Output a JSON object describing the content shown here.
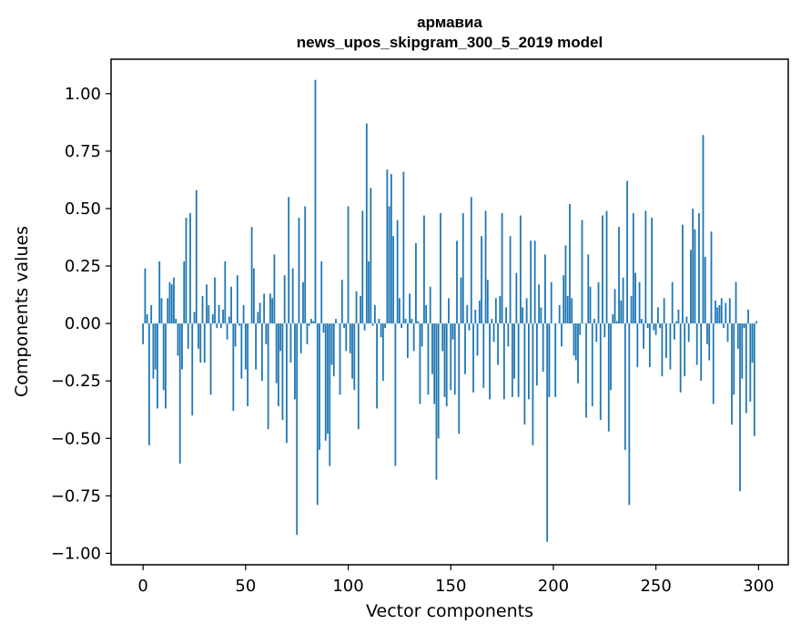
{
  "chart_data": {
    "type": "bar",
    "title_line1": "армавиа",
    "title_line2": "news_upos_skipgram_300_5_2019 model",
    "xlabel": "Vector components",
    "ylabel": "Components values",
    "xlim": [
      -15.6,
      314.5
    ],
    "ylim": [
      -1.05,
      1.15
    ],
    "grid": false,
    "bar_color": "#1f77b4",
    "x_ticks": [
      0,
      50,
      100,
      150,
      200,
      250,
      300
    ],
    "y_ticks": [
      -1.0,
      -0.75,
      -0.5,
      -0.25,
      0.0,
      0.25,
      0.5,
      0.75,
      1.0
    ],
    "x_tick_labels": [
      "0",
      "50",
      "100",
      "150",
      "200",
      "250",
      "300"
    ],
    "y_tick_labels": [
      "−1.00",
      "−0.75",
      "−0.50",
      "−0.25",
      "0.00",
      "0.25",
      "0.50",
      "0.75",
      "1.00"
    ],
    "values": [
      -0.09,
      0.24,
      0.04,
      -0.53,
      0.08,
      -0.24,
      -0.2,
      -0.37,
      0.27,
      0.11,
      -0.29,
      -0.37,
      0.11,
      0.18,
      0.17,
      0.2,
      0.02,
      -0.14,
      -0.61,
      -0.2,
      0.27,
      0.46,
      -0.11,
      0.48,
      -0.4,
      0.05,
      0.58,
      -0.11,
      -0.17,
      0.12,
      -0.17,
      0.17,
      0.08,
      -0.31,
      0.04,
      0.2,
      -0.02,
      0.08,
      -0.02,
      0.06,
      0.27,
      -0.07,
      0.03,
      0.16,
      -0.38,
      -0.1,
      0.21,
      -0.01,
      -0.24,
      0.08,
      -0.2,
      -0.36,
      0.0,
      0.42,
      0.24,
      -0.2,
      0.05,
      0.09,
      -0.25,
      0.13,
      -0.09,
      -0.46,
      0.13,
      0.11,
      0.3,
      -0.26,
      -0.36,
      -0.12,
      -0.42,
      0.21,
      -0.52,
      0.55,
      -0.17,
      0.24,
      -0.33,
      -0.92,
      0.46,
      -0.13,
      0.18,
      0.51,
      -0.09,
      -0.01,
      0.02,
      0.01,
      1.06,
      -0.79,
      -0.55,
      0.27,
      -0.04,
      -0.51,
      -0.48,
      -0.62,
      -0.18,
      -0.23,
      0.02,
      0.0,
      -0.31,
      0.19,
      -0.02,
      -0.12,
      0.51,
      -0.13,
      -0.24,
      -0.29,
      0.14,
      -0.46,
      0.12,
      0.49,
      -0.03,
      0.87,
      0.27,
      0.59,
      -0.01,
      0.08,
      -0.37,
      0.02,
      -0.06,
      -0.25,
      -0.02,
      0.67,
      0.51,
      0.65,
      0.38,
      -0.62,
      0.45,
      0.11,
      -0.02,
      0.66,
      0.02,
      -0.15,
      0.13,
      0.02,
      -0.12,
      0.35,
      0.01,
      -0.35,
      -0.1,
      0.47,
      0.08,
      -0.31,
      0.16,
      -0.22,
      -0.35,
      -0.68,
      -0.5,
      0.48,
      -0.12,
      -0.32,
      -0.36,
      0.11,
      -0.29,
      -0.07,
      -0.31,
      0.36,
      -0.48,
      0.2,
      0.48,
      -0.22,
      0.08,
      -0.03,
      0.55,
      -0.3,
      0.06,
      -0.14,
      0.1,
      0.38,
      -0.28,
      0.49,
      0.19,
      -0.33,
      0.02,
      -0.08,
      0.11,
      -0.18,
      0.12,
      0.48,
      -0.33,
      0.07,
      -0.1,
      0.38,
      -0.32,
      -0.24,
      0.22,
      -0.32,
      0.47,
      0.07,
      -0.44,
      0.11,
      -0.33,
      0.36,
      -0.53,
      0.36,
      -0.27,
      0.17,
      0.07,
      -0.21,
      0.3,
      -0.95,
      -0.32,
      0.18,
      0.0,
      -0.32,
      0.0,
      0.08,
      -0.1,
      0.21,
      0.34,
      0.12,
      0.52,
      0.11,
      -0.14,
      -0.16,
      -0.26,
      -0.05,
      0.45,
      0.0,
      -0.41,
      0.3,
      0.16,
      -0.36,
      0.02,
      -0.08,
      0.18,
      -0.42,
      0.47,
      -0.06,
      0.49,
      -0.47,
      -0.29,
      0.04,
      0.15,
      0.01,
      0.42,
      0.1,
      0.2,
      -0.55,
      0.62,
      -0.79,
      0.12,
      0.48,
      0.22,
      -0.19,
      0.18,
      0.02,
      -0.11,
      0.49,
      -0.02,
      -0.19,
      0.46,
      -0.03,
      -0.05,
      0.07,
      -0.02,
      -0.23,
      0.11,
      -0.15,
      0.0,
      -0.2,
      0.18,
      -0.07,
      0.01,
      0.06,
      -0.3,
      0.43,
      -0.23,
      0.03,
      -0.08,
      0.32,
      0.5,
      0.41,
      -0.18,
      0.48,
      -0.25,
      0.82,
      0.29,
      -0.09,
      -0.16,
      0.4,
      -0.35,
      0.1,
      0.07,
      0.08,
      0.11,
      -0.02,
      0.09,
      -0.08,
      0.11,
      -0.44,
      -0.31,
      0.18,
      -0.11,
      -0.73,
      -0.24,
      -0.02,
      -0.39,
      0.06,
      -0.34,
      -0.17,
      -0.49,
      0.01
    ]
  }
}
